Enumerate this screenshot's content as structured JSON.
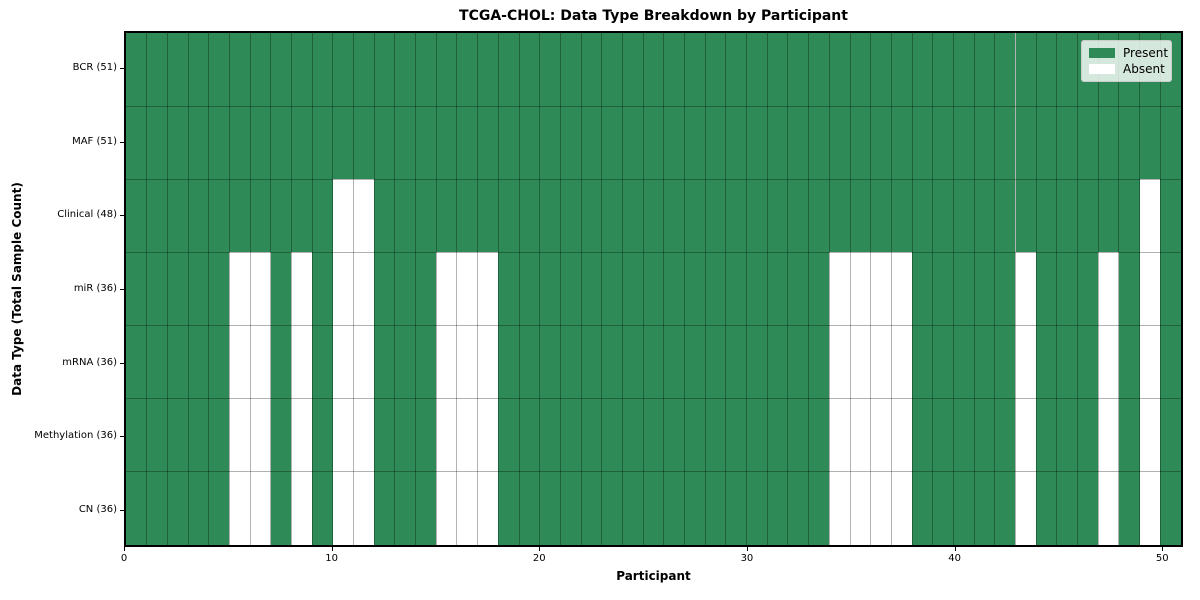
{
  "figure": {
    "background": "#ffffff"
  },
  "chart_data": {
    "type": "heatmap",
    "title": "TCGA-CHOL: Data Type Breakdown by Participant",
    "xlabel": "Participant",
    "ylabel": "Data Type (Total Sample Count)",
    "n_participants": 51,
    "x_range": [
      0,
      51
    ],
    "x_ticks": [
      0,
      10,
      20,
      30,
      40,
      50
    ],
    "grid": true,
    "legend_position": "upper right",
    "legend": [
      {
        "label": "Present",
        "color": "#2e8b57"
      },
      {
        "label": "Absent",
        "color": "#ffffff"
      }
    ],
    "colors": {
      "present": "#2e8b57",
      "absent": "#ffffff",
      "gridline": "rgba(0, 0, 0, 0.3)",
      "spine": "#000000"
    },
    "rows": [
      {
        "label": "BCR (51)",
        "total": 51,
        "absent_participants": []
      },
      {
        "label": "MAF (51)",
        "total": 51,
        "absent_participants": []
      },
      {
        "label": "Clinical (48)",
        "total": 48,
        "absent_participants": [
          10,
          11,
          49
        ]
      },
      {
        "label": "miR (36)",
        "total": 36,
        "absent_participants": [
          5,
          6,
          8,
          10,
          11,
          15,
          16,
          17,
          34,
          35,
          36,
          37,
          43,
          47,
          49
        ]
      },
      {
        "label": "mRNA (36)",
        "total": 36,
        "absent_participants": [
          5,
          6,
          8,
          10,
          11,
          15,
          16,
          17,
          34,
          35,
          36,
          37,
          43,
          47,
          49
        ]
      },
      {
        "label": "Methylation (36)",
        "total": 36,
        "absent_participants": [
          5,
          6,
          8,
          10,
          11,
          15,
          16,
          17,
          34,
          35,
          36,
          37,
          43,
          47,
          49
        ]
      },
      {
        "label": "CN (36)",
        "total": 36,
        "absent_participants": [
          5,
          6,
          8,
          10,
          11,
          15,
          16,
          17,
          34,
          35,
          36,
          37,
          43,
          47,
          49
        ]
      }
    ]
  }
}
